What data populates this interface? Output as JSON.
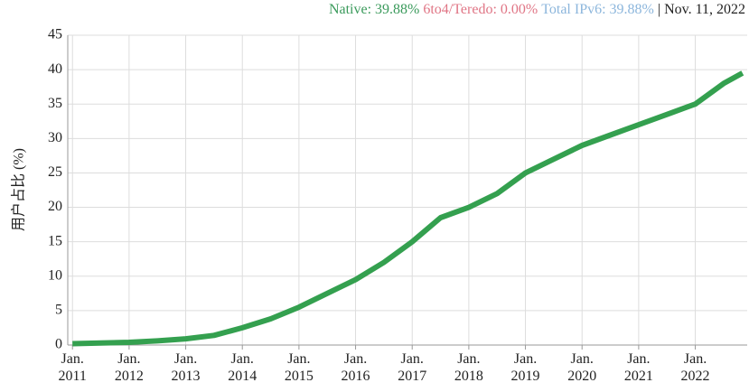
{
  "chart_data": {
    "type": "line",
    "annotations": [
      {
        "text": "Native: 39.88%",
        "color": "#3a9a5b"
      },
      {
        "text": "6to4/Teredo: 0.00%",
        "color": "#e07585"
      },
      {
        "text": "Total IPv6: 39.88%",
        "color": "#8cb6dc"
      },
      {
        "text": "| Nov. 11, 2022",
        "color": "#222222"
      }
    ],
    "ylabel": "用户占比 (%)",
    "x": [
      "2011-01",
      "2011-07",
      "2012-01",
      "2012-07",
      "2013-01",
      "2013-07",
      "2014-01",
      "2014-07",
      "2015-01",
      "2015-07",
      "2016-01",
      "2016-07",
      "2017-01",
      "2017-07",
      "2018-01",
      "2018-07",
      "2019-01",
      "2019-07",
      "2020-01",
      "2020-07",
      "2021-01",
      "2021-07",
      "2022-01",
      "2022-07",
      "2022-11"
    ],
    "series": [
      {
        "name": "Native",
        "color": "#34a04f",
        "values": [
          0.2,
          0.3,
          0.4,
          0.6,
          0.9,
          1.4,
          2.5,
          3.8,
          5.5,
          7.5,
          9.5,
          12,
          15,
          18.5,
          20,
          22,
          25,
          27,
          29,
          30.5,
          32,
          33.5,
          35,
          38,
          39.5
        ]
      }
    ],
    "xlim": [
      "2010-12",
      "2022-12"
    ],
    "xticks": [
      {
        "value": "2011-01",
        "label": "Jan. 2011"
      },
      {
        "value": "2012-01",
        "label": "Jan. 2012"
      },
      {
        "value": "2013-01",
        "label": "Jan. 2013"
      },
      {
        "value": "2014-01",
        "label": "Jan. 2014"
      },
      {
        "value": "2015-01",
        "label": "Jan. 2015"
      },
      {
        "value": "2016-01",
        "label": "Jan. 2016"
      },
      {
        "value": "2017-01",
        "label": "Jan. 2017"
      },
      {
        "value": "2018-01",
        "label": "Jan. 2018"
      },
      {
        "value": "2019-01",
        "label": "Jan. 2019"
      },
      {
        "value": "2020-01",
        "label": "Jan. 2020"
      },
      {
        "value": "2021-01",
        "label": "Jan. 2021"
      },
      {
        "value": "2022-01",
        "label": "Jan. 2022"
      }
    ],
    "ylim": [
      0,
      45
    ],
    "yticks": [
      0,
      5,
      10,
      15,
      20,
      25,
      30,
      35,
      40,
      45
    ],
    "grid": true
  }
}
